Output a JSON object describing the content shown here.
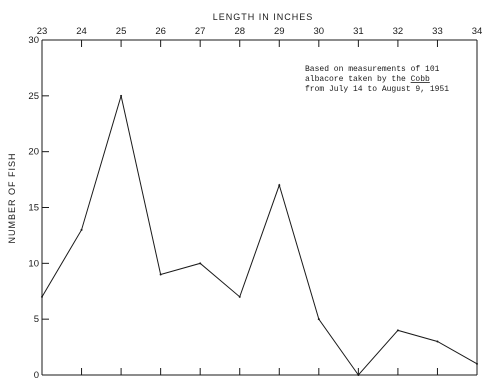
{
  "chart_data": {
    "type": "line",
    "xlabel": "LENGTH IN INCHES",
    "ylabel": "NUMBER OF FISH",
    "x": [
      23,
      24,
      25,
      26,
      27,
      28,
      29,
      30,
      31,
      32,
      33,
      34
    ],
    "series": [
      {
        "values": [
          7,
          13,
          25,
          9,
          10,
          7,
          17,
          5,
          0,
          4,
          3,
          1
        ]
      }
    ],
    "xlim": [
      23,
      34
    ],
    "ylim": [
      0,
      30
    ],
    "x_ticks": [
      23,
      24,
      25,
      26,
      27,
      28,
      29,
      30,
      31,
      32,
      33,
      34
    ],
    "y_ticks": [
      0,
      5,
      10,
      15,
      20,
      25,
      30
    ],
    "x_axis_position": "top",
    "grid": false,
    "annotation": {
      "line1": "Based on measurements of 101",
      "line2_prefix": "albacore taken by the ",
      "line2_vessel": "Cobb",
      "line3": "from July 14 to August 9, 1951"
    }
  }
}
